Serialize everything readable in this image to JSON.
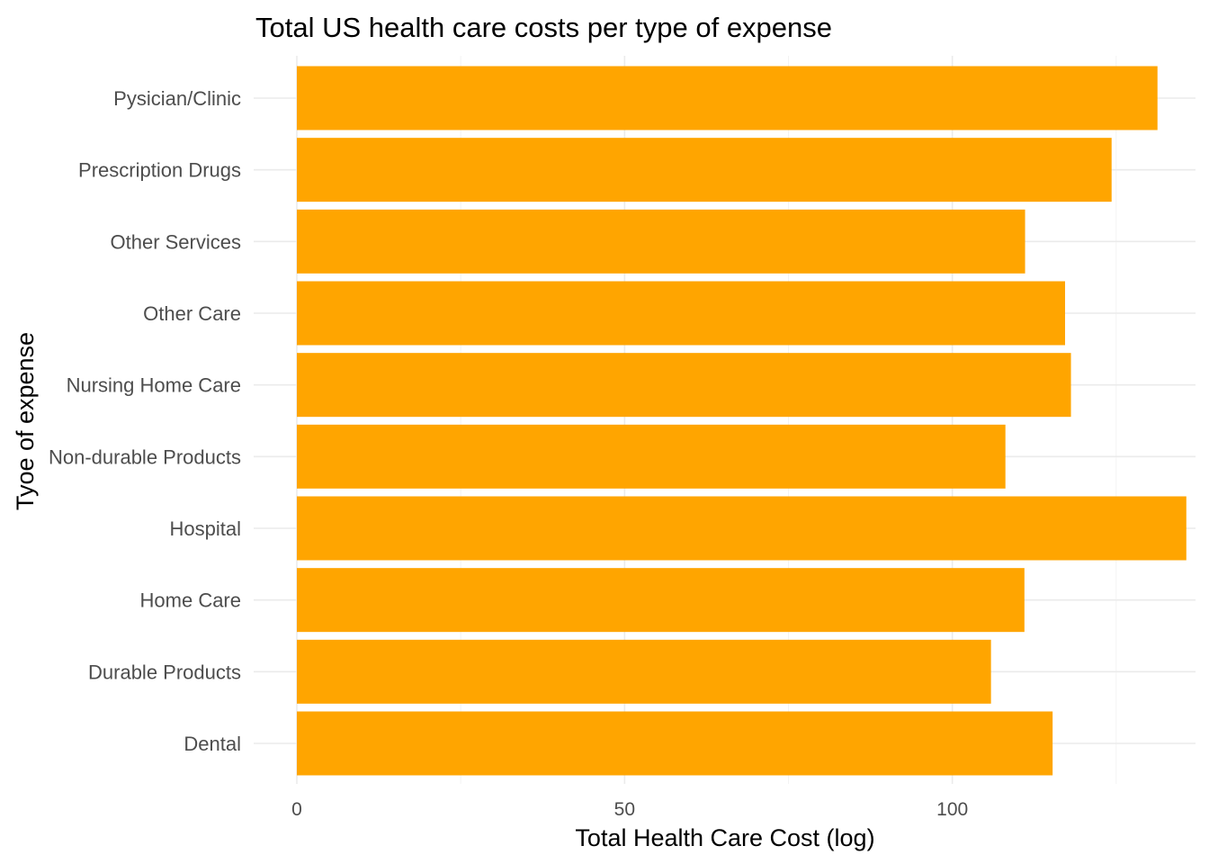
{
  "chart_data": {
    "type": "bar",
    "orientation": "horizontal",
    "title": "Total US health care costs per type of expense",
    "xlabel": "Total Health Care Cost (log)",
    "ylabel": "Tyoe of expense",
    "categories": [
      "Dental",
      "Durable Products",
      "Home Care",
      "Hospital",
      "Non-durable Products",
      "Nursing Home Care",
      "Other Care",
      "Other Services",
      "Prescription Drugs",
      "Pysician/Clinic"
    ],
    "values": [
      115.3,
      105.9,
      111.0,
      135.7,
      108.1,
      118.1,
      117.2,
      111.1,
      124.3,
      131.3
    ],
    "xlim": [
      0,
      137.1
    ],
    "xticks": [
      0,
      50,
      100
    ],
    "xtick_labels": [
      "0",
      "50",
      "100"
    ],
    "grid": true,
    "bar_color": "#FFA500",
    "legend": "none"
  }
}
